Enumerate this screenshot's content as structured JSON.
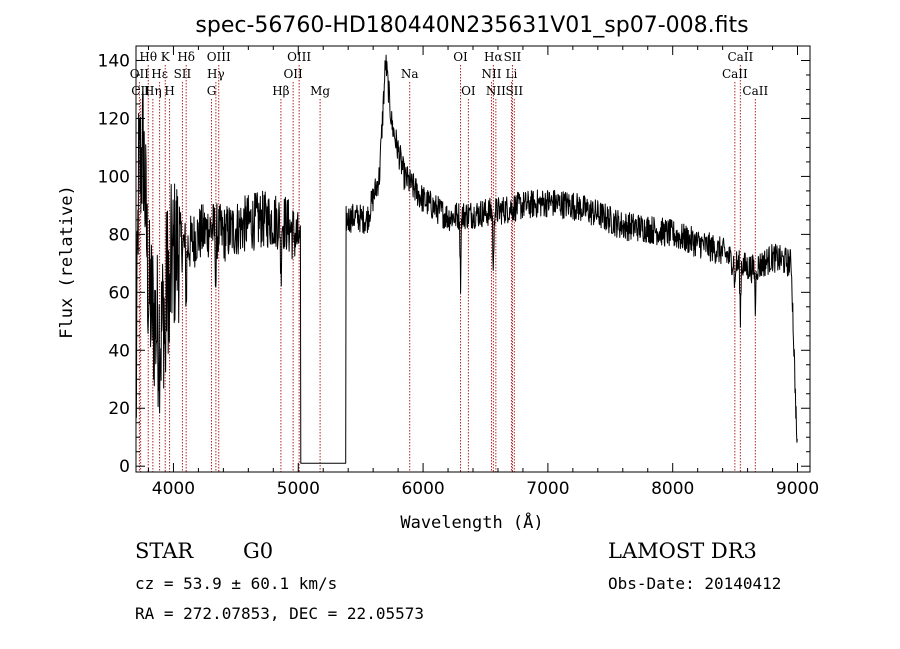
{
  "chart_data": {
    "type": "line",
    "title": "spec-56760-HD180440N235631V01_sp07-008.fits",
    "xlabel": "Wavelength (Å)",
    "ylabel": "Flux (relative)",
    "xlim": [
      3700,
      9100
    ],
    "ylim": [
      -2,
      145
    ],
    "xticks": [
      4000,
      5000,
      6000,
      7000,
      8000,
      9000
    ],
    "yticks": [
      0,
      20,
      40,
      60,
      80,
      100,
      120,
      140
    ],
    "grid": false,
    "series_color": "#000000",
    "line_marker_color": "#b22222",
    "gap": [
      5020,
      5380
    ],
    "spectrum_anchors": [
      [
        3700,
        15
      ],
      [
        3720,
        100
      ],
      [
        3760,
        110
      ],
      [
        3800,
        60
      ],
      [
        3850,
        50
      ],
      [
        3900,
        45
      ],
      [
        3950,
        65
      ],
      [
        4000,
        72
      ],
      [
        4050,
        78
      ],
      [
        4100,
        75
      ],
      [
        4200,
        80
      ],
      [
        4300,
        82
      ],
      [
        4400,
        80
      ],
      [
        4500,
        82
      ],
      [
        4600,
        84
      ],
      [
        4700,
        85
      ],
      [
        4800,
        85
      ],
      [
        4900,
        84
      ],
      [
        5000,
        78
      ],
      [
        5380,
        85
      ],
      [
        5450,
        86
      ],
      [
        5550,
        85
      ],
      [
        5650,
        100
      ],
      [
        5700,
        140
      ],
      [
        5750,
        118
      ],
      [
        5850,
        100
      ],
      [
        6000,
        92
      ],
      [
        6200,
        86
      ],
      [
        6400,
        87
      ],
      [
        6600,
        88
      ],
      [
        6800,
        90
      ],
      [
        7000,
        91
      ],
      [
        7200,
        90
      ],
      [
        7400,
        87
      ],
      [
        7600,
        83
      ],
      [
        7800,
        82
      ],
      [
        8000,
        80
      ],
      [
        8200,
        77
      ],
      [
        8400,
        74
      ],
      [
        8500,
        70
      ],
      [
        8650,
        68
      ],
      [
        8800,
        72
      ],
      [
        8950,
        70
      ],
      [
        9000,
        2
      ]
    ],
    "absorption_dips": [
      [
        3934,
        25
      ],
      [
        3969,
        25
      ],
      [
        4102,
        20
      ],
      [
        4340,
        20
      ],
      [
        4861,
        20
      ],
      [
        6300,
        25
      ],
      [
        6563,
        25
      ],
      [
        8498,
        10
      ],
      [
        8542,
        20
      ],
      [
        8662,
        15
      ]
    ],
    "spectral_lines": [
      {
        "label": "Hθ",
        "wavelength": 3798,
        "row": 1
      },
      {
        "label": "OII",
        "wavelength": 3727,
        "row": 2
      },
      {
        "label": "CII",
        "wavelength": 3737,
        "row": 3
      },
      {
        "label": "K",
        "wavelength": 3934,
        "row": 1
      },
      {
        "label": "Hε",
        "wavelength": 3889,
        "row": 2
      },
      {
        "label": "Hη",
        "wavelength": 3835,
        "row": 3
      },
      {
        "label": "Hδ",
        "wavelength": 4102,
        "row": 1
      },
      {
        "label": "SII",
        "wavelength": 4072,
        "row": 2
      },
      {
        "label": "H",
        "wavelength": 3969,
        "row": 3
      },
      {
        "label": "OIII",
        "wavelength": 4363,
        "row": 1
      },
      {
        "label": "Hγ",
        "wavelength": 4340,
        "row": 2
      },
      {
        "label": "G",
        "wavelength": 4305,
        "row": 3
      },
      {
        "label": "Hβ",
        "wavelength": 4861,
        "row": 3
      },
      {
        "label": "OIII",
        "wavelength": 5007,
        "row": 1
      },
      {
        "label": "OII",
        "wavelength": 4959,
        "row": 2
      },
      {
        "label": "Mg",
        "wavelength": 5175,
        "row": 3
      },
      {
        "label": "Na",
        "wavelength": 5893,
        "row": 2
      },
      {
        "label": "OI",
        "wavelength": 6300,
        "row": 1
      },
      {
        "label": "OI",
        "wavelength": 6363,
        "row": 3
      },
      {
        "label": "Hα",
        "wavelength": 6563,
        "row": 1
      },
      {
        "label": "NII",
        "wavelength": 6548,
        "row": 2
      },
      {
        "label": "NII",
        "wavelength": 6583,
        "row": 3
      },
      {
        "label": "SII",
        "wavelength": 6716,
        "row": 1
      },
      {
        "label": "Li",
        "wavelength": 6708,
        "row": 2
      },
      {
        "label": "SII",
        "wavelength": 6731,
        "row": 3
      },
      {
        "label": "CaII",
        "wavelength": 8542,
        "row": 1
      },
      {
        "label": "CaII",
        "wavelength": 8498,
        "row": 2
      },
      {
        "label": "CaII",
        "wavelength": 8662,
        "row": 3
      }
    ]
  },
  "info": {
    "class": "STAR",
    "subclass": "G0",
    "survey": "LAMOST DR3",
    "velocity": "cz = 53.9 ± 60.1 km/s",
    "obs_date": "Obs-Date: 20140412",
    "coords": "RA = 272.07853, DEC =  22.05573"
  }
}
